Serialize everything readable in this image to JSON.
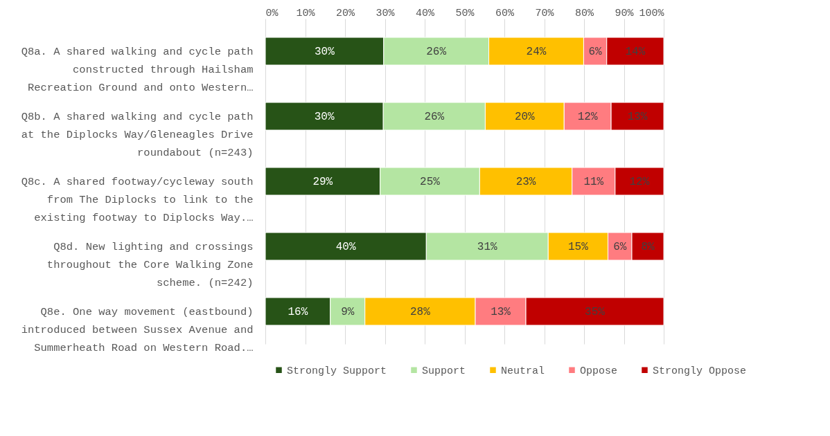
{
  "chart_data": {
    "type": "bar",
    "orientation": "horizontal",
    "stacked": true,
    "categories": [
      "Q8a.  A shared walking and cycle path constructed through Hailsham Recreation Ground and onto Western…",
      "Q8b. A shared walking and cycle path at the Diplocks Way/Gleneagles Drive roundabout (n=243)",
      "Q8c. A shared footway/cycleway south from The Diplocks to link to the existing footway to Diplocks Way.…",
      "Q8d. New lighting and crossings throughout the Core Walking Zone scheme. (n=242)",
      "Q8e. One way movement (eastbound) introduced between Sussex Avenue and Summerheath Road on Western Road.…"
    ],
    "series": [
      {
        "name": "Strongly Support",
        "color": "#275317",
        "values": [
          29.7,
          29.6,
          28.8,
          40.4,
          16.3
        ],
        "value_labels": [
          "30%",
          "30%",
          "29%",
          "40%",
          "16%"
        ]
      },
      {
        "name": "Support",
        "color": "#b4e5a2",
        "values": [
          26.4,
          25.6,
          25.0,
          30.6,
          8.7
        ],
        "value_labels": [
          "26%",
          "26%",
          "25%",
          "31%",
          "9%"
        ]
      },
      {
        "name": "Neutral",
        "color": "#ffc000",
        "values": [
          23.8,
          19.8,
          23.2,
          15.0,
          27.7
        ],
        "value_labels": [
          "24%",
          "20%",
          "23%",
          "15%",
          "28%"
        ]
      },
      {
        "name": "Oppose",
        "color": "#ff7c80",
        "values": [
          5.8,
          11.8,
          10.8,
          6.0,
          12.7
        ],
        "value_labels": [
          "6%",
          "12%",
          "11%",
          "6%",
          "13%"
        ]
      },
      {
        "name": "Strongly Oppose",
        "color": "#c00000",
        "values": [
          14.3,
          13.2,
          12.2,
          8.0,
          34.6
        ],
        "value_labels": [
          "14%",
          "13%",
          "12%",
          "8%",
          "35%"
        ]
      }
    ],
    "xlim": [
      0,
      100
    ],
    "xticks": [
      {
        "value": 0,
        "label": "0%"
      },
      {
        "value": 10,
        "label": "10%"
      },
      {
        "value": 20,
        "label": "20%"
      },
      {
        "value": 30,
        "label": "30%"
      },
      {
        "value": 40,
        "label": "40%"
      },
      {
        "value": 50,
        "label": "50%"
      },
      {
        "value": 60,
        "label": "60%"
      },
      {
        "value": 70,
        "label": "70%"
      },
      {
        "value": 80,
        "label": "80%"
      },
      {
        "value": 90,
        "label": "90%"
      },
      {
        "value": 100,
        "label": "100%"
      }
    ],
    "grid": "x",
    "legend": "bottom"
  }
}
